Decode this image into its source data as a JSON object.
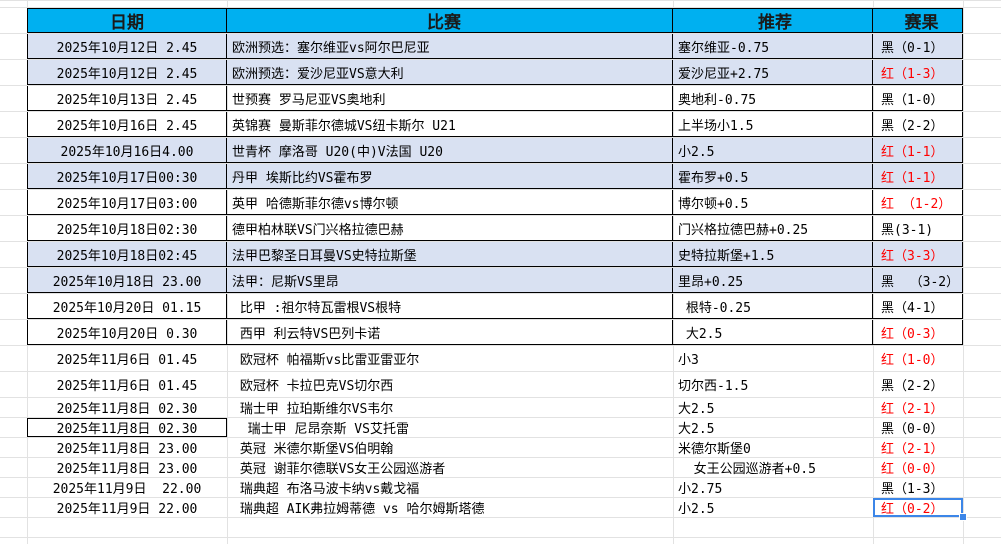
{
  "header": {
    "date": "日期",
    "match": "比赛",
    "recommendation": "推荐",
    "result": "赛果"
  },
  "colors": {
    "header_bg": "#00B0F0",
    "highlight_row": "#D9E1F2",
    "win": "#FF0000",
    "loss": "#000000"
  },
  "rows": [
    {
      "date": "2025年10月12日 2.45",
      "match": "欧洲预选：塞尔维亚vs阿尔巴尼亚",
      "rec": "塞尔维亚-0.75",
      "result": "黑（0-1）",
      "win": false,
      "highlight": true
    },
    {
      "date": "2025年10月12日 2.45",
      "match": "欧洲预选：爱沙尼亚VS意大利",
      "rec": "爱沙尼亚+2.75",
      "result": "红（1-3）",
      "win": true,
      "highlight": true
    },
    {
      "date": "2025年10月13日 2.45",
      "match": "世预赛 罗马尼亚VS奥地利",
      "rec": "奥地利-0.75",
      "result": "黑（1-0）",
      "win": false,
      "highlight": false
    },
    {
      "date": "2025年10月16日 2.45",
      "match": "英锦赛 曼斯菲尔德城VS纽卡斯尔 U21",
      "rec": "上半场小1.5",
      "result": "黑（2-2）",
      "win": false,
      "highlight": false
    },
    {
      "date": "2025年10月16日4.00",
      "match": "世青杯 摩洛哥 U20(中)V法国 U20",
      "rec": "小2.5",
      "result": "红（1-1）",
      "win": true,
      "highlight": true
    },
    {
      "date": "2025年10月17日00:30",
      "match": "丹甲 埃斯比约VS霍布罗",
      "rec": "霍布罗+0.5",
      "result": "红（1-1）",
      "win": true,
      "highlight": true
    },
    {
      "date": "2025年10月17日03:00",
      "match": "英甲 哈德斯菲尔德vs博尔顿",
      "rec": "博尔顿+0.5",
      "result": "红 （1-2）",
      "win": true,
      "highlight": false
    },
    {
      "date": "2025年10月18日02:30",
      "match": "德甲柏林联VS门兴格拉德巴赫",
      "rec": "门兴格拉德巴赫+0.25",
      "result": "黑(3-1)",
      "win": false,
      "highlight": false
    },
    {
      "date": "2025年10月18日02:45",
      "match": "法甲巴黎圣日耳曼VS史特拉斯堡",
      "rec": "史特拉斯堡+1.5",
      "result": "红（3-3）",
      "win": true,
      "highlight": true
    },
    {
      "date": "2025年10月18日 23.00",
      "match": "法甲：尼斯VS里昂",
      "rec": "里昂+0.25",
      "result": "黑  （3-2）",
      "win": false,
      "highlight": true
    },
    {
      "date": "2025年10月20日 01.15",
      "match": " 比甲 :祖尔特瓦雷根VS根特",
      "rec": " 根特-0.25",
      "result": "黑（4-1）",
      "win": false,
      "highlight": false
    },
    {
      "date": "2025年10月20日 0.30",
      "match": " 西甲 利云特VS巴列卡诺",
      "rec": " 大2.5",
      "result": "红（0-3）",
      "win": true,
      "highlight": false
    },
    {
      "date": "2025年11月6日 01.45",
      "match": " 欧冠杯 帕福斯vs比雷亚雷亚尔",
      "rec": "小3",
      "result": "红（1-0）",
      "win": true,
      "highlight": false
    },
    {
      "date": "2025年11月6日 01.45",
      "match": " 欧冠杯 卡拉巴克VS切尔西",
      "rec": "切尔西-1.5",
      "result": "黑（2-2）",
      "win": false,
      "highlight": false
    },
    {
      "date": "2025年11月8日 02.30",
      "match": " 瑞士甲 拉珀斯维尔VS韦尔",
      "rec": "大2.5",
      "result": "红（2-1）",
      "win": true,
      "highlight": false
    },
    {
      "date": "2025年11月8日 02.30",
      "match": "  瑞士甲 尼昂奈斯 VS艾托雷",
      "rec": "大2.5",
      "result": "黑（0-0）",
      "win": false,
      "highlight": false
    },
    {
      "date": "2025年11月8日 23.00",
      "match": " 英冠 米德尔斯堡VS伯明翰",
      "rec": "米德尔斯堡0",
      "result": "红（2-1）",
      "win": true,
      "highlight": false
    },
    {
      "date": "2025年11月8日 23.00",
      "match": " 英冠 谢菲尔德联VS女王公园巡游者",
      "rec": "  女王公园巡游者+0.5",
      "result": "红（0-0）",
      "win": true,
      "highlight": false
    },
    {
      "date": "2025年11月9日  22.00",
      "match": " 瑞典超 布洛马波卡纳vs戴戈福",
      "rec": "小2.75",
      "result": "黑（1-3）",
      "win": false,
      "highlight": false
    },
    {
      "date": "2025年11月9日 22.00",
      "match": " 瑞典超 AIK弗拉姆蒂德 vs 哈尔姆斯塔德",
      "rec": "小2.5",
      "result": "红（0-2）",
      "win": true,
      "highlight": false
    }
  ]
}
